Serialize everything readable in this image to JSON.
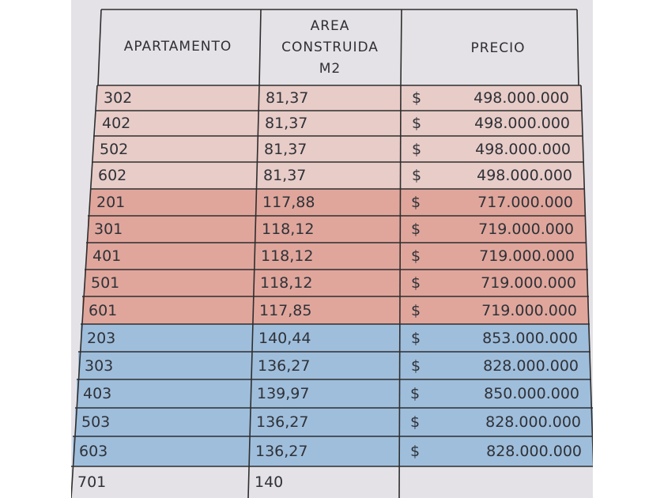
{
  "table": {
    "headers": {
      "apartamento": "APARTAMENTO",
      "area_line1": "AREA",
      "area_line2": "CONSTRUIDA",
      "area_line3": "M2",
      "precio": "PRECIO"
    },
    "rows": [
      {
        "apt": "302",
        "area": "81,37",
        "currency": "$",
        "price": "498.000.000",
        "tint": "pink"
      },
      {
        "apt": "402",
        "area": "81,37",
        "currency": "$",
        "price": "498.000.000",
        "tint": "pink"
      },
      {
        "apt": "502",
        "area": "81,37",
        "currency": "$",
        "price": "498.000.000",
        "tint": "pink"
      },
      {
        "apt": "602",
        "area": "81,37",
        "currency": "$",
        "price": "498.000.000",
        "tint": "pink"
      },
      {
        "apt": "201",
        "area": "117,88",
        "currency": "$",
        "price": "717.000.000",
        "tint": "red"
      },
      {
        "apt": "301",
        "area": "118,12",
        "currency": "$",
        "price": "719.000.000",
        "tint": "red"
      },
      {
        "apt": "401",
        "area": "118,12",
        "currency": "$",
        "price": "719.000.000",
        "tint": "red"
      },
      {
        "apt": "501",
        "area": "118,12",
        "currency": "$",
        "price": "719.000.000",
        "tint": "red"
      },
      {
        "apt": "601",
        "area": "117,85",
        "currency": "$",
        "price": "719.000.000",
        "tint": "red"
      },
      {
        "apt": "203",
        "area": "140,44",
        "currency": "$",
        "price": "853.000.000",
        "tint": "blue"
      },
      {
        "apt": "303",
        "area": "136,27",
        "currency": "$",
        "price": "828.000.000",
        "tint": "blue"
      },
      {
        "apt": "403",
        "area": "139,97",
        "currency": "$",
        "price": "850.000.000",
        "tint": "blue"
      },
      {
        "apt": "503",
        "area": "136,27",
        "currency": "$",
        "price": "828.000.000",
        "tint": "blue"
      },
      {
        "apt": "603",
        "area": "136,27",
        "currency": "$",
        "price": "828.000.000",
        "tint": "blue"
      },
      {
        "apt": "701",
        "area": "140",
        "currency": "",
        "price": "",
        "tint": "none"
      }
    ]
  },
  "colors": {
    "paper": "#e4e2e6",
    "pink": "#e8ccc8",
    "red": "#e0a69c",
    "blue": "#9fbedc",
    "ink": "#2f3238"
  }
}
